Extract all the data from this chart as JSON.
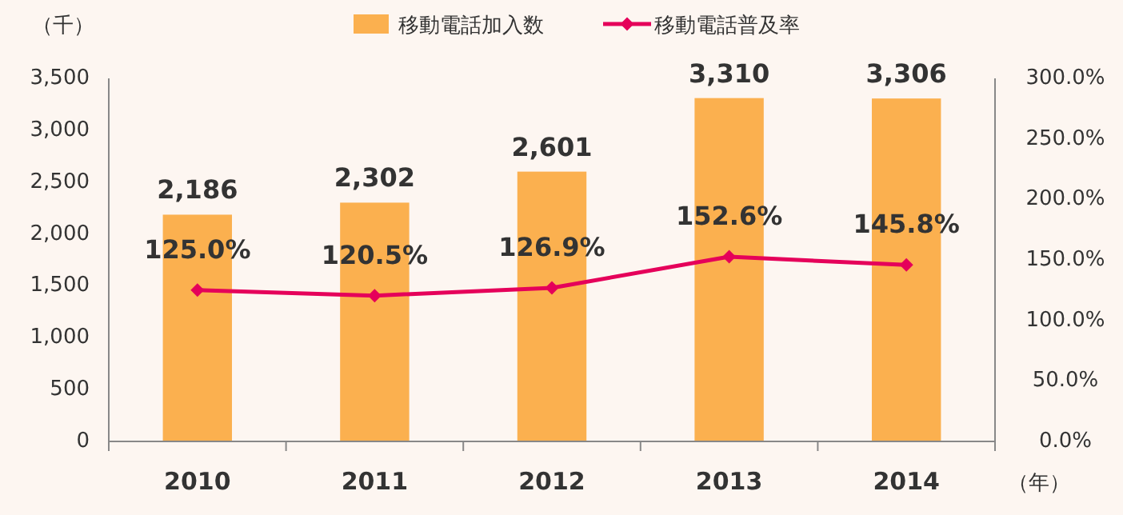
{
  "chart_data": {
    "type": "bar",
    "ylabel": "（千）",
    "xlabel": "（年）",
    "categories": [
      "2010",
      "2011",
      "2012",
      "2013",
      "2014"
    ],
    "series": [
      {
        "name": "移動電話加入数",
        "color": "#fbb04f",
        "values": [
          2186,
          2302,
          2601,
          3310,
          3306
        ],
        "value_labels": [
          "2,186",
          "2,302",
          "2,601",
          "3,310",
          "3,306"
        ]
      },
      {
        "name": "移動電話普及率",
        "type": "line",
        "axis": "y2",
        "color": "#e5005a",
        "marker": "diamond",
        "values": [
          125.0,
          120.5,
          126.9,
          152.6,
          145.8
        ],
        "value_labels": [
          "125.0%",
          "120.5%",
          "126.9%",
          "152.6%",
          "145.8%"
        ]
      }
    ],
    "ylim": [
      0,
      3500
    ],
    "yticks": [
      0,
      500,
      {
        "value": 1000,
        "label": "1,000"
      },
      {
        "value": 1500,
        "label": "1,500"
      },
      {
        "value": 2000,
        "label": "2,000"
      },
      {
        "value": 2500,
        "label": "2,500"
      },
      {
        "value": 3000,
        "label": "3,000"
      },
      {
        "value": 3500,
        "label": "3,500"
      }
    ],
    "y2lim": [
      0,
      300
    ],
    "y2ticks": [
      {
        "value": 0,
        "label": "0.0%"
      },
      {
        "value": 50,
        "label": "50.0%"
      },
      {
        "value": 100,
        "label": "100.0%"
      },
      {
        "value": 150,
        "label": "150.0%"
      },
      {
        "value": 200,
        "label": "200.0%"
      },
      {
        "value": 250,
        "label": "250.0%"
      },
      {
        "value": 300,
        "label": "300.0%"
      }
    ],
    "legend": "top",
    "grid": false
  }
}
